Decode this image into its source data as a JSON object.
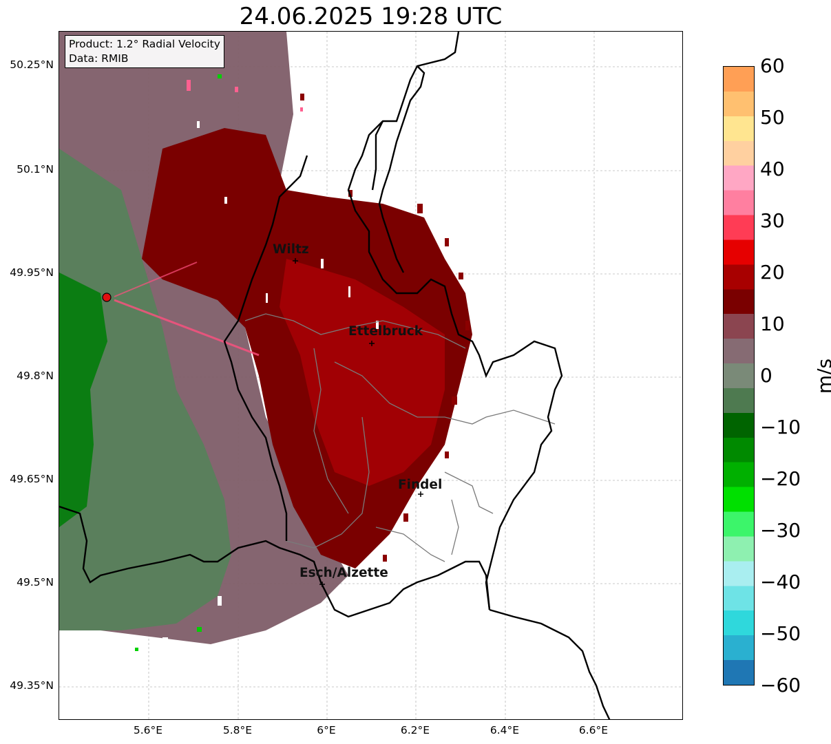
{
  "title": "24.06.2025 19:28 UTC",
  "info": {
    "product": "Product: 1.2° Radial Velocity",
    "source": "Data: RMIB"
  },
  "axes": {
    "lat_ticks": [
      "50.25°N",
      "50.1°N",
      "49.95°N",
      "49.8°N",
      "49.65°N",
      "49.5°N",
      "49.35°N"
    ],
    "lon_ticks": [
      "5.6°E",
      "5.8°E",
      "6°E",
      "6.2°E",
      "6.4°E",
      "6.6°E"
    ]
  },
  "cities": [
    {
      "name": "Wiltz"
    },
    {
      "name": "Ettelbruck"
    },
    {
      "name": "Findel"
    },
    {
      "name": "Esch/Alzette"
    }
  ],
  "colorbar": {
    "unit": "m/s",
    "ticks": [
      "60",
      "50",
      "40",
      "30",
      "20",
      "10",
      "0",
      "−10",
      "−20",
      "−30",
      "−40",
      "−50",
      "−60"
    ],
    "range": [
      -60,
      60
    ],
    "colors": [
      "#1f77b4",
      "#2ab0d0",
      "#2fd8dc",
      "#6ee3e6",
      "#a9eef0",
      "#8ef0b0",
      "#3cf56a",
      "#00e000",
      "#00b000",
      "#008a00",
      "#006400",
      "#4e7a50",
      "#7a8a78",
      "#866b73",
      "#8b4550",
      "#7a0000",
      "#a80000",
      "#e60000",
      "#ff3c55",
      "#ff7fa0",
      "#ffa7c4",
      "#ffd0a0",
      "#ffe590",
      "#ffc070",
      "#ff9f55"
    ],
    "palette": {
      "dark_red": "#7d0000",
      "red": "#a00000",
      "mauve": "#7e5d68",
      "grey_green": "#55785a",
      "green": "#007a00",
      "radar_site": "#e01010"
    }
  }
}
